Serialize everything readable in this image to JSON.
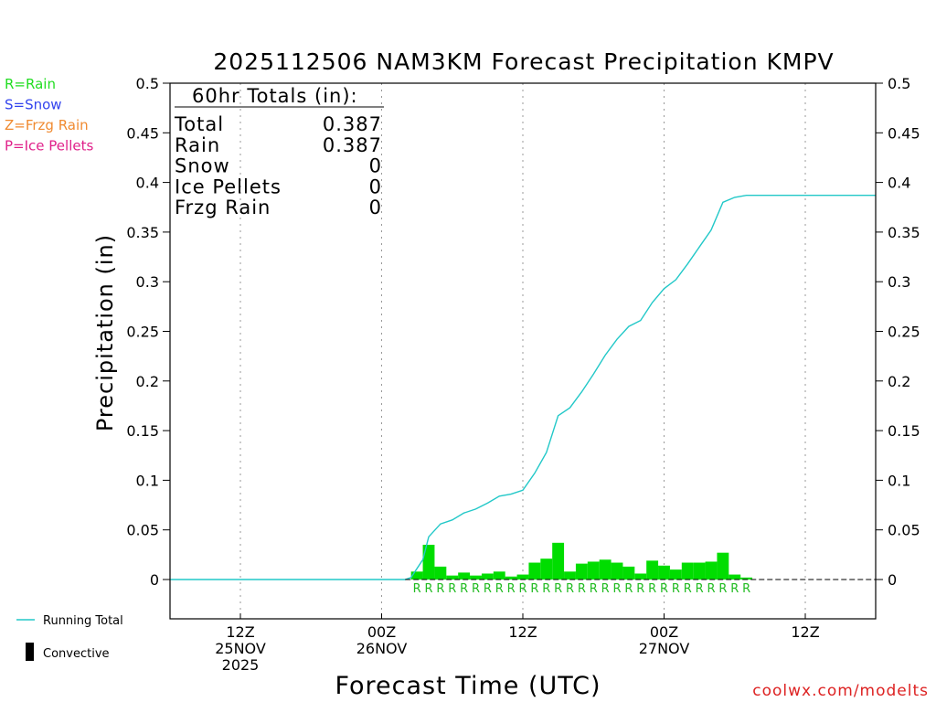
{
  "chart_data": {
    "type": "bar",
    "title": "2025112506 NAM3KM Forecast Precipitation KMPV",
    "xlabel": "Forecast Time (UTC)",
    "ylabel": "Precipitation (in)",
    "ylim": [
      -0.04,
      0.5
    ],
    "yticks": [
      0,
      0.05,
      0.1,
      0.15,
      0.2,
      0.25,
      0.3,
      0.35,
      0.4,
      0.45,
      0.5
    ],
    "ytick_labels": [
      "0",
      "0.05",
      "0.1",
      "0.15",
      "0.2",
      "0.25",
      "0.3",
      "0.35",
      "0.4",
      "0.45",
      "0.5"
    ],
    "xlim_hours": [
      0,
      60
    ],
    "xticks": [
      {
        "hour": 6,
        "lines": [
          "12Z",
          "25NOV",
          "2025"
        ]
      },
      {
        "hour": 18,
        "lines": [
          "00Z",
          "26NOV"
        ]
      },
      {
        "hour": 30,
        "lines": [
          "12Z"
        ]
      },
      {
        "hour": 42,
        "lines": [
          "00Z",
          "27NOV"
        ]
      },
      {
        "hour": 54,
        "lines": [
          "12Z"
        ]
      }
    ],
    "hourly_hours": [
      21,
      22,
      23,
      24,
      25,
      26,
      27,
      28,
      29,
      30,
      31,
      32,
      33,
      34,
      35,
      36,
      37,
      38,
      39,
      40,
      41,
      42,
      43,
      44,
      45,
      46,
      47,
      48,
      49
    ],
    "hourly_precip": [
      0.008,
      0.035,
      0.013,
      0.004,
      0.007,
      0.004,
      0.006,
      0.008,
      0.003,
      0.005,
      0.017,
      0.021,
      0.037,
      0.008,
      0.016,
      0.018,
      0.02,
      0.017,
      0.013,
      0.006,
      0.019,
      0.014,
      0.01,
      0.017,
      0.017,
      0.018,
      0.027,
      0.005,
      0.002
    ],
    "precip_type": [
      "R",
      "R",
      "R",
      "R",
      "R",
      "R",
      "R",
      "R",
      "R",
      "R",
      "R",
      "R",
      "R",
      "R",
      "R",
      "R",
      "R",
      "R",
      "R",
      "R",
      "R",
      "R",
      "R",
      "R",
      "R",
      "R",
      "R",
      "R",
      "R"
    ],
    "running_total": {
      "hours": [
        0,
        20,
        20.5,
        21.5,
        22,
        23,
        24,
        25,
        26,
        27,
        28,
        29,
        30,
        31,
        32,
        33,
        34,
        35,
        36,
        37,
        38,
        39,
        40,
        41,
        42,
        43,
        44,
        45,
        46,
        47,
        48,
        49,
        50,
        60
      ],
      "values": [
        0,
        0,
        0.002,
        0.02,
        0.043,
        0.056,
        0.06,
        0.067,
        0.071,
        0.077,
        0.084,
        0.086,
        0.09,
        0.107,
        0.128,
        0.165,
        0.173,
        0.189,
        0.207,
        0.226,
        0.242,
        0.255,
        0.261,
        0.279,
        0.293,
        0.302,
        0.318,
        0.335,
        0.352,
        0.38,
        0.385,
        0.387,
        0.387,
        0.387
      ]
    },
    "legend": [
      "Running Total",
      "Convective"
    ]
  },
  "ptype_legend": [
    {
      "label": "R=Rain",
      "color": "#22dd22"
    },
    {
      "label": "S=Snow",
      "color": "#3344ee"
    },
    {
      "label": "Z=Frzg Rain",
      "color": "#f08a30"
    },
    {
      "label": "P=Ice Pellets",
      "color": "#e0208a"
    }
  ],
  "totals": {
    "heading": "60hr Totals (in):",
    "rows": [
      {
        "label": "Total",
        "value": "0.387"
      },
      {
        "label": "Rain",
        "value": "0.387"
      },
      {
        "label": "Snow",
        "value": "0"
      },
      {
        "label": "Ice Pellets",
        "value": "0"
      },
      {
        "label": "Frzg Rain",
        "value": "0"
      }
    ]
  },
  "colors": {
    "bar": "#00dd00",
    "running_total": "#22c8c8",
    "rain_letter": "#22bb22",
    "credit": "#dd2222"
  },
  "credit": "coolwx.com/modelts"
}
